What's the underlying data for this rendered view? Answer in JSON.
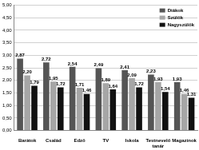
{
  "chart_data": {
    "type": "bar",
    "categories": [
      "Barátok",
      "Család",
      "Edző",
      "TV",
      "Iskola",
      "Testnevelő tanár",
      "Magazinok"
    ],
    "series": [
      {
        "name": "Diákok",
        "color": "#555555",
        "values": [
          2.87,
          2.72,
          2.54,
          2.49,
          2.41,
          2.23,
          1.93
        ],
        "value_labels": [
          "2,87",
          "2,72",
          "2,54",
          "2,49",
          "2,41",
          "2,23",
          "1,93"
        ]
      },
      {
        "name": "Szülők",
        "color": "#a6a6a6",
        "values": [
          2.2,
          1.95,
          1.71,
          1.89,
          2.09,
          1.93,
          1.46
        ],
        "value_labels": [
          "2,20",
          "1,95",
          "1,71",
          "1,89",
          "2,09",
          "1,93",
          "1,46"
        ]
      },
      {
        "name": "Nagyszülők",
        "color": "#111111",
        "values": [
          1.79,
          1.72,
          1.46,
          1.64,
          1.72,
          1.54,
          1.31
        ],
        "value_labels": [
          "1,79",
          "1,72",
          "1,46",
          "1,64",
          "1,72",
          "1,54",
          "1,31"
        ]
      }
    ],
    "ylim": [
      0,
      5
    ],
    "yticks": [
      {
        "value": 0,
        "label": "0,00"
      },
      {
        "value": 0.5,
        "label": "0,50"
      },
      {
        "value": 1,
        "label": "1,00"
      },
      {
        "value": 1.5,
        "label": "1,50"
      },
      {
        "value": 2,
        "label": "2,00"
      },
      {
        "value": 2.5,
        "label": "2,50"
      },
      {
        "value": 3,
        "label": "3,00"
      },
      {
        "value": 3.5,
        "label": "3,50"
      },
      {
        "value": 4,
        "label": "4,00"
      },
      {
        "value": 4.5,
        "label": "4,50"
      },
      {
        "value": 5,
        "label": "5,00"
      }
    ],
    "grid": true,
    "legend": "top-right",
    "data_labels": true
  }
}
